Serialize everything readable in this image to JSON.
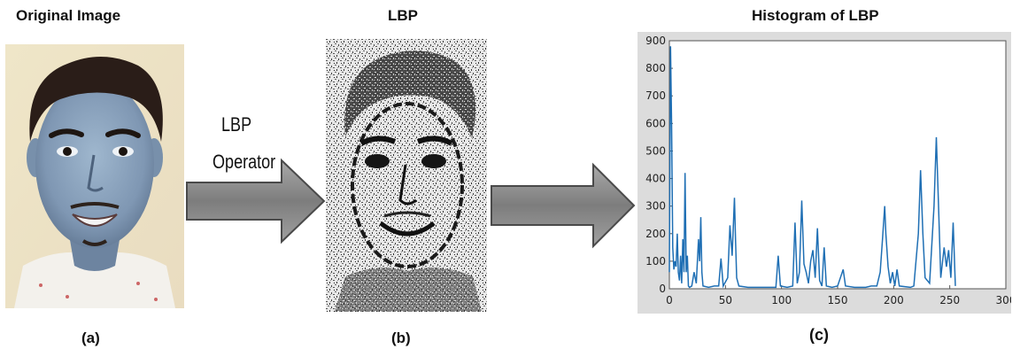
{
  "panels": {
    "original": {
      "title": "Original Image",
      "caption": "(a)"
    },
    "lbp": {
      "title": "LBP",
      "caption": "(b)"
    },
    "histogram": {
      "title": "Histogram of LBP",
      "caption": "(c)"
    }
  },
  "operator": {
    "line1": "LBP",
    "line2": "Operator"
  },
  "colors": {
    "series": "#1f6fb4",
    "arrow_fill": "#8e8e8e",
    "arrow_stroke": "#4a4a4a",
    "plot_frame": "#dcdcdc"
  },
  "chart_data": {
    "type": "line",
    "title": "",
    "xlabel": "",
    "ylabel": "",
    "xlim": [
      0,
      300
    ],
    "ylim": [
      0,
      900
    ],
    "xticks": [
      0,
      50,
      100,
      150,
      200,
      250,
      300
    ],
    "yticks": [
      0,
      100,
      200,
      300,
      400,
      500,
      600,
      700,
      800,
      900
    ],
    "grid": false,
    "series": [
      {
        "values": [
          [
            0,
            60
          ],
          [
            1,
            880
          ],
          [
            2,
            600
          ],
          [
            3,
            150
          ],
          [
            4,
            70
          ],
          [
            5,
            100
          ],
          [
            6,
            80
          ],
          [
            7,
            200
          ],
          [
            8,
            60
          ],
          [
            9,
            30
          ],
          [
            10,
            120
          ],
          [
            11,
            20
          ],
          [
            12,
            180
          ],
          [
            13,
            60
          ],
          [
            14,
            420
          ],
          [
            15,
            60
          ],
          [
            16,
            120
          ],
          [
            17,
            10
          ],
          [
            18,
            5
          ],
          [
            20,
            10
          ],
          [
            22,
            60
          ],
          [
            24,
            20
          ],
          [
            26,
            180
          ],
          [
            27,
            100
          ],
          [
            28,
            260
          ],
          [
            29,
            60
          ],
          [
            30,
            10
          ],
          [
            35,
            5
          ],
          [
            40,
            10
          ],
          [
            44,
            10
          ],
          [
            46,
            110
          ],
          [
            48,
            10
          ],
          [
            52,
            40
          ],
          [
            54,
            230
          ],
          [
            56,
            120
          ],
          [
            58,
            330
          ],
          [
            59,
            180
          ],
          [
            60,
            40
          ],
          [
            62,
            10
          ],
          [
            70,
            5
          ],
          [
            80,
            5
          ],
          [
            90,
            5
          ],
          [
            95,
            5
          ],
          [
            97,
            120
          ],
          [
            99,
            10
          ],
          [
            105,
            5
          ],
          [
            110,
            10
          ],
          [
            112,
            240
          ],
          [
            114,
            20
          ],
          [
            116,
            60
          ],
          [
            118,
            320
          ],
          [
            120,
            90
          ],
          [
            122,
            60
          ],
          [
            124,
            20
          ],
          [
            126,
            100
          ],
          [
            128,
            140
          ],
          [
            130,
            40
          ],
          [
            132,
            220
          ],
          [
            134,
            30
          ],
          [
            136,
            10
          ],
          [
            138,
            150
          ],
          [
            140,
            10
          ],
          [
            145,
            5
          ],
          [
            150,
            10
          ],
          [
            155,
            70
          ],
          [
            157,
            10
          ],
          [
            165,
            5
          ],
          [
            175,
            5
          ],
          [
            180,
            10
          ],
          [
            185,
            10
          ],
          [
            188,
            60
          ],
          [
            190,
            180
          ],
          [
            192,
            300
          ],
          [
            193,
            200
          ],
          [
            195,
            80
          ],
          [
            197,
            20
          ],
          [
            199,
            60
          ],
          [
            201,
            10
          ],
          [
            203,
            70
          ],
          [
            205,
            10
          ],
          [
            215,
            5
          ],
          [
            218,
            10
          ],
          [
            222,
            200
          ],
          [
            224,
            430
          ],
          [
            226,
            200
          ],
          [
            228,
            40
          ],
          [
            232,
            20
          ],
          [
            236,
            300
          ],
          [
            238,
            550
          ],
          [
            240,
            300
          ],
          [
            242,
            40
          ],
          [
            245,
            150
          ],
          [
            247,
            80
          ],
          [
            249,
            140
          ],
          [
            251,
            40
          ],
          [
            253,
            240
          ],
          [
            255,
            10
          ]
        ]
      }
    ]
  }
}
